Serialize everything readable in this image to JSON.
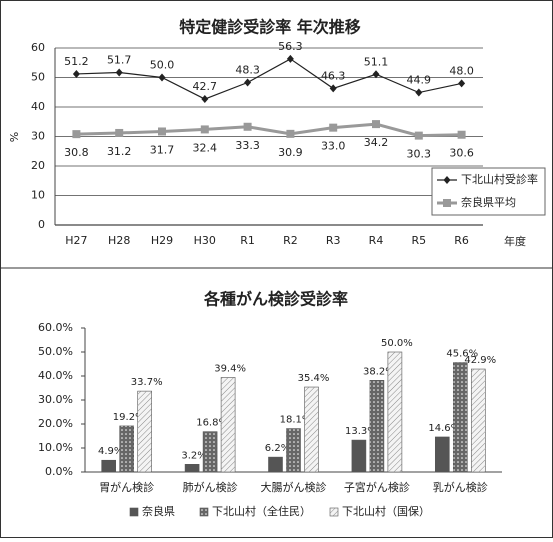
{
  "chart_data": [
    {
      "type": "line",
      "title": "特定健診受診率 年次推移",
      "y_label": "%",
      "x_label": "年度",
      "categories": [
        "H27",
        "H28",
        "H29",
        "H30",
        "R1",
        "R2",
        "R3",
        "R4",
        "R5",
        "R6"
      ],
      "series": [
        {
          "name": "下北山村受診率",
          "color": "#222222",
          "marker": "diamond",
          "values": [
            51.2,
            51.7,
            50.0,
            42.7,
            48.3,
            56.3,
            46.3,
            51.1,
            44.9,
            48.0
          ],
          "value_labels": [
            "51.2",
            "51.7",
            "50.0",
            "42.7",
            "48.3",
            "56.3",
            "46.3",
            "51.1",
            "44.9",
            "48.0"
          ]
        },
        {
          "name": "奈良県平均",
          "color": "#999999",
          "marker": "square",
          "values": [
            30.8,
            31.2,
            31.7,
            32.4,
            33.3,
            30.9,
            33.0,
            34.2,
            30.3,
            30.6
          ],
          "value_labels": [
            "30.8",
            "31.2",
            "31.7",
            "32.4",
            "33.3",
            "30.9",
            "33.0",
            "34.2",
            "30.3",
            "30.6"
          ]
        }
      ],
      "ylim": [
        0,
        60
      ],
      "yticks": [
        0,
        10,
        20,
        30,
        40,
        50,
        60
      ],
      "grid": true,
      "legend": "lower right"
    },
    {
      "type": "bar",
      "title": "各種がん検診受診率",
      "categories": [
        "胃がん検診",
        "肺がん検診",
        "大腸がん検診",
        "子宮がん検診",
        "乳がん検診"
      ],
      "series": [
        {
          "name": "奈良県",
          "color": "#555555",
          "values": [
            4.9,
            3.2,
            6.2,
            13.3,
            14.6
          ],
          "value_labels": [
            "4.9%",
            "3.2%",
            "6.2%",
            "13.3%",
            "14.6%"
          ]
        },
        {
          "name": "下北山村（全住民）",
          "color": "#666666",
          "values": [
            19.2,
            16.8,
            18.1,
            38.2,
            45.6
          ],
          "value_labels": [
            "19.2%",
            "16.8%",
            "18.1%",
            "38.2%",
            "45.6%"
          ]
        },
        {
          "name": "下北山村（国保）",
          "color": "#f4f4f4",
          "values": [
            33.7,
            39.4,
            35.4,
            50.0,
            42.9
          ],
          "value_labels": [
            "33.7%",
            "39.4%",
            "35.4%",
            "50.0%",
            "42.9%"
          ]
        }
      ],
      "ylim": [
        0,
        60
      ],
      "yticks": [
        {
          "value": 0,
          "label": "0.0%"
        },
        {
          "value": 10,
          "label": "10.0%"
        },
        {
          "value": 20,
          "label": "20.0%"
        },
        {
          "value": 30,
          "label": "30.0%"
        },
        {
          "value": 40,
          "label": "40.0%"
        },
        {
          "value": 50,
          "label": "50.0%"
        },
        {
          "value": 60,
          "label": "60.0%"
        }
      ],
      "grid": false,
      "legend": "bottom"
    }
  ]
}
